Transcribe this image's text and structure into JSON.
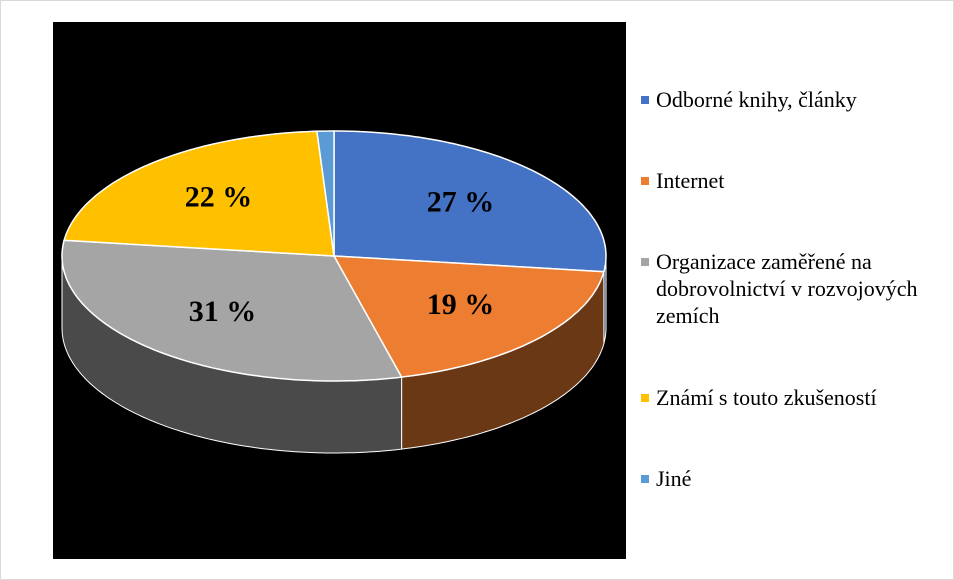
{
  "chart_data": {
    "type": "pie",
    "categories": [
      "Odborné knihy, články",
      "Internet",
      "Organizace zaměřené na dobrovolnictví v rozvojových zemích",
      "Známí s touto zkušeností",
      "Jiné"
    ],
    "values": [
      27,
      19,
      31,
      22,
      1
    ],
    "value_labels": [
      "27 %",
      "19 %",
      "31 %",
      "22 %",
      null
    ],
    "colors": [
      "#4472c4",
      "#ed7d31",
      "#a5a5a5",
      "#ffc000",
      "#5b9bd5"
    ],
    "legend": "right"
  }
}
